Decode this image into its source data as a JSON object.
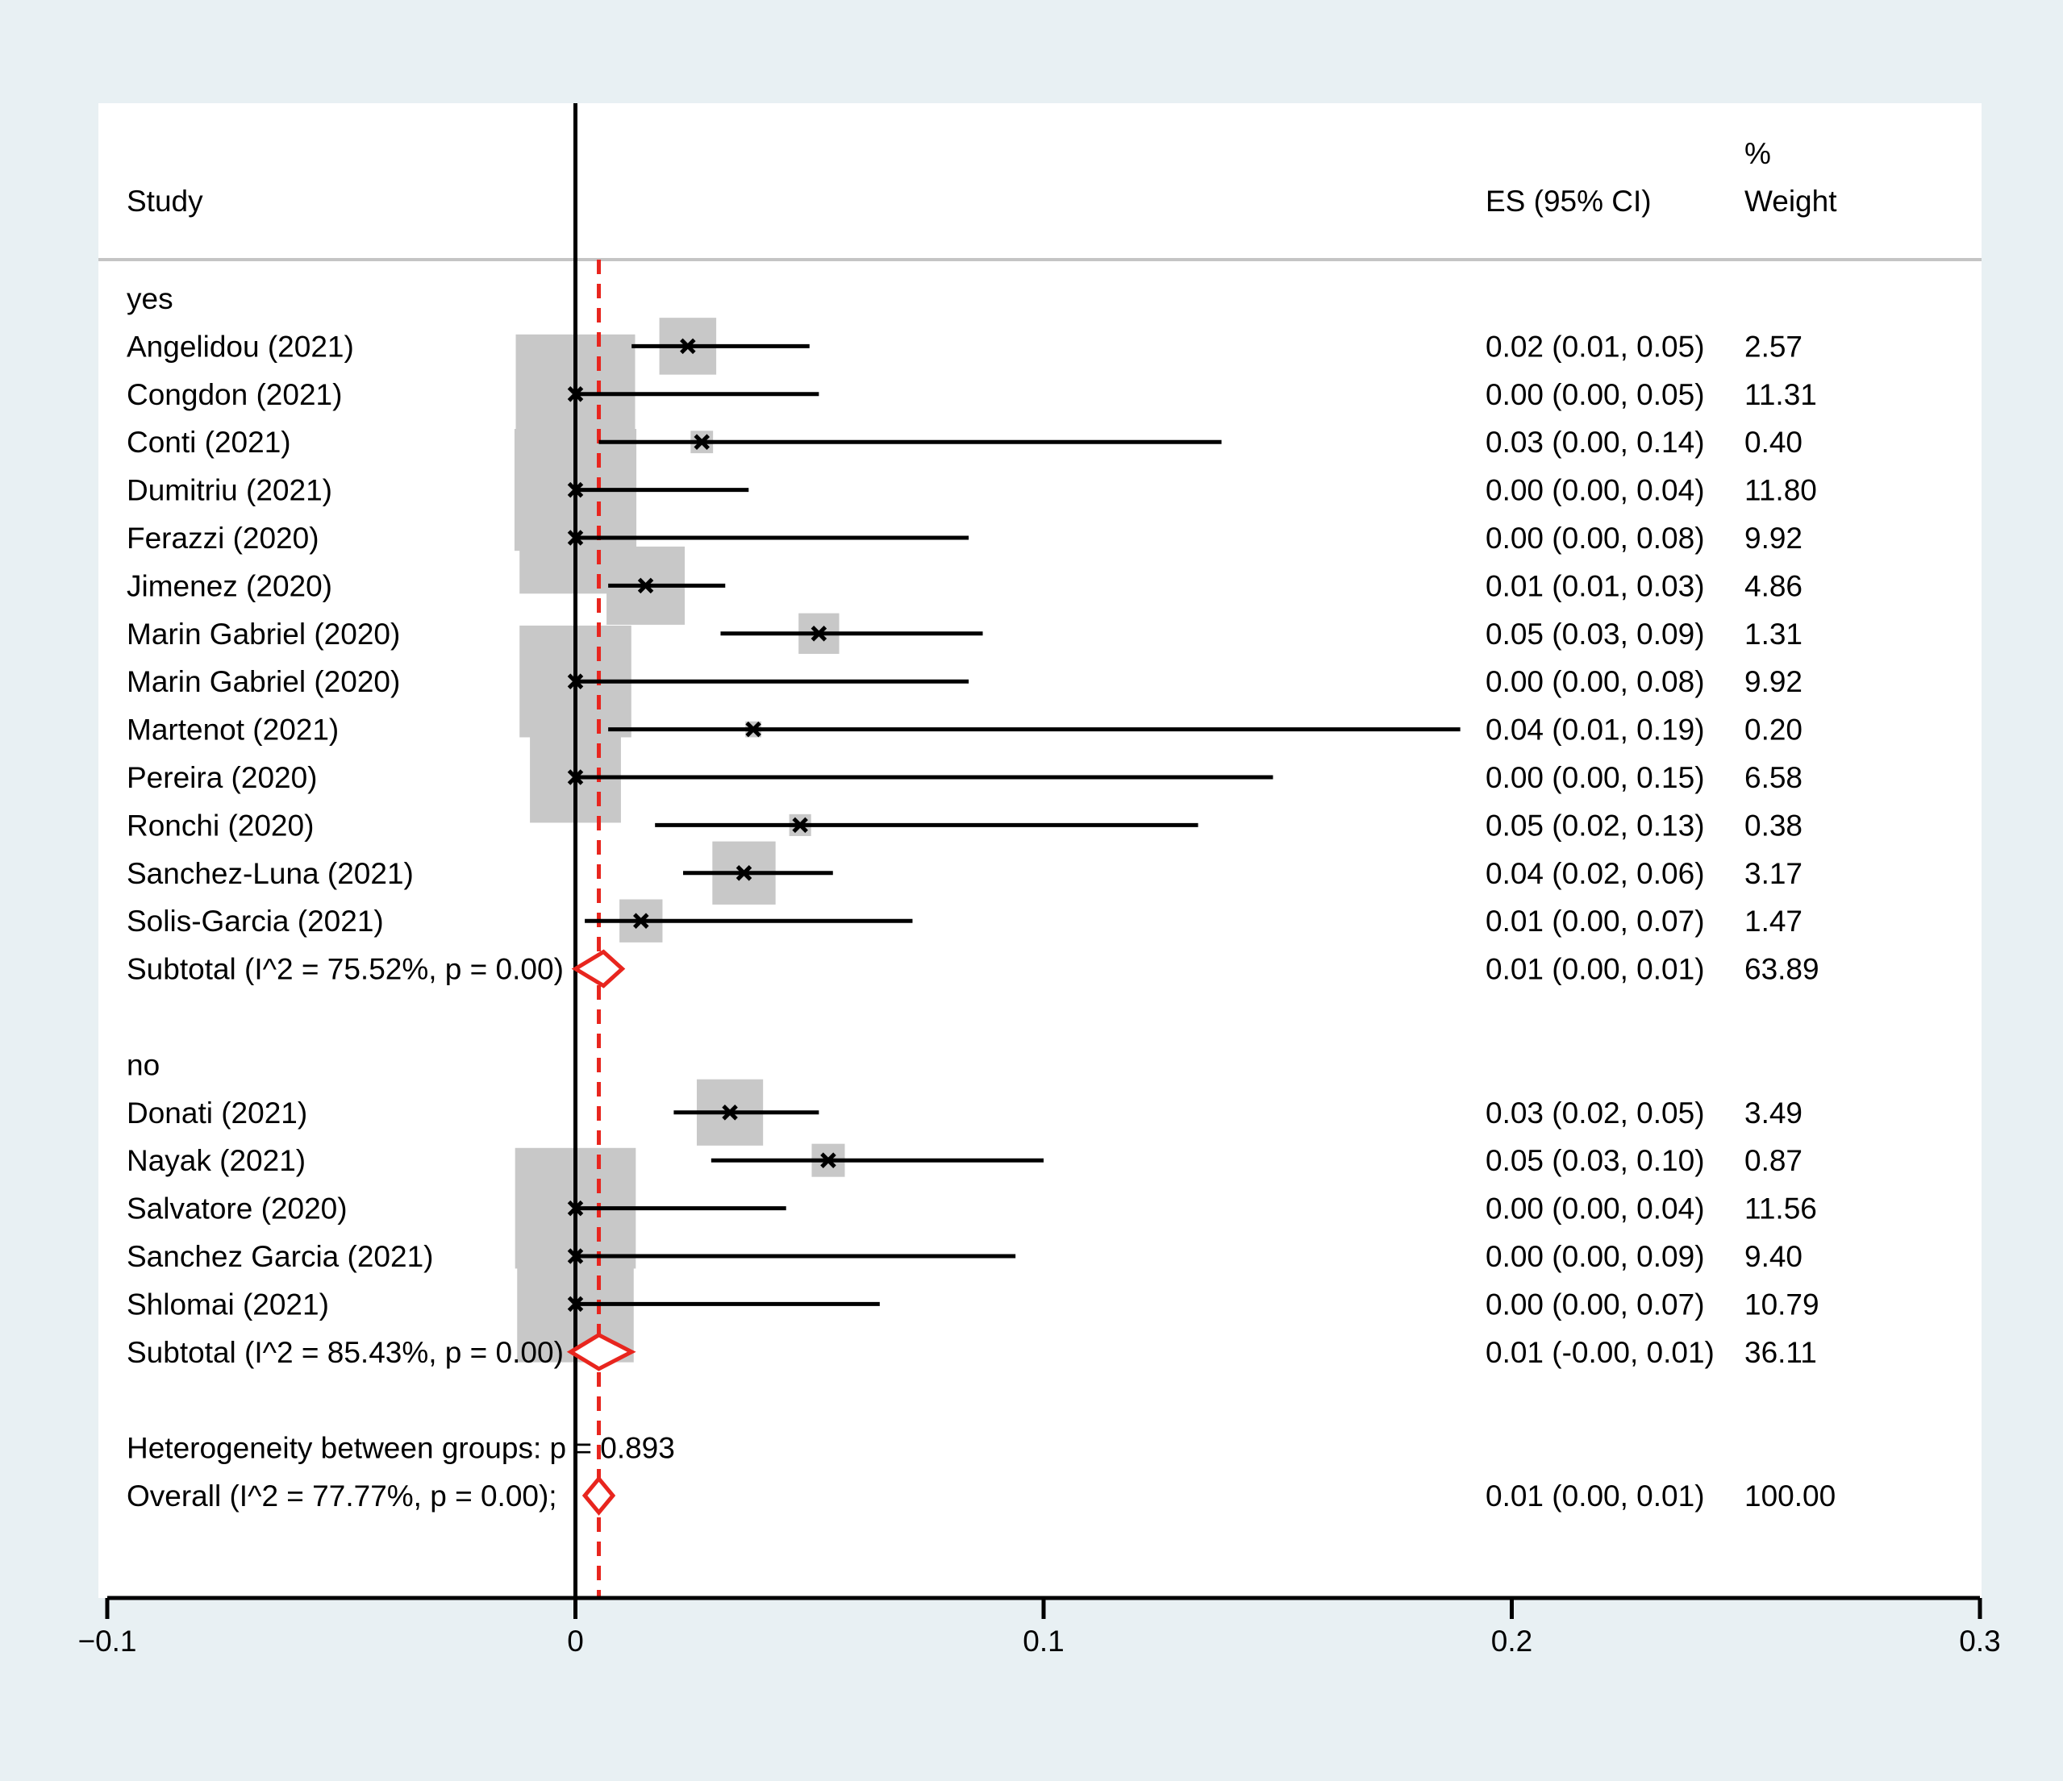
{
  "chart_data": {
    "type": "forest",
    "title": "",
    "xlabel": "",
    "xlim": [
      -0.1,
      0.3
    ],
    "xticks": [
      -0.1,
      0,
      0.1,
      0.2,
      0.3
    ],
    "xtick_labels": [
      "−0.1",
      "0",
      "0.1",
      "0.2",
      "0.3"
    ],
    "overall_es": 0.005,
    "headers": {
      "study": "Study",
      "es": "ES (95% CI)",
      "weight_line1": "%",
      "weight_line2": "Weight"
    },
    "groups": [
      {
        "label": "yes",
        "studies": [
          {
            "name": "Angelidou  (2021)",
            "es": 0.024,
            "lo": 0.012,
            "hi": 0.05,
            "es_text": "0.02 (0.01, 0.05)",
            "weight": 2.57,
            "weight_text": "2.57"
          },
          {
            "name": "Congdon (2021)",
            "es": 0.0,
            "lo": 0.0,
            "hi": 0.052,
            "es_text": "0.00 (0.00, 0.05)",
            "weight": 11.31,
            "weight_text": "11.31"
          },
          {
            "name": "Conti  (2021)",
            "es": 0.027,
            "lo": 0.005,
            "hi": 0.138,
            "es_text": "0.03 (0.00, 0.14)",
            "weight": 0.4,
            "weight_text": "0.40"
          },
          {
            "name": "Dumitriu  (2021)",
            "es": 0.0,
            "lo": 0.0,
            "hi": 0.037,
            "es_text": "0.00 (0.00, 0.04)",
            "weight": 11.8,
            "weight_text": "11.80"
          },
          {
            "name": "Ferazzi  (2020)",
            "es": 0.0,
            "lo": 0.0,
            "hi": 0.084,
            "es_text": "0.00 (0.00, 0.08)",
            "weight": 9.92,
            "weight_text": "9.92"
          },
          {
            "name": "Jimenez  (2020)",
            "es": 0.015,
            "lo": 0.007,
            "hi": 0.032,
            "es_text": "0.01 (0.01, 0.03)",
            "weight": 4.86,
            "weight_text": "4.86"
          },
          {
            "name": "Marin Gabriel  (2020)",
            "es": 0.052,
            "lo": 0.031,
            "hi": 0.087,
            "es_text": "0.05 (0.03, 0.09)",
            "weight": 1.31,
            "weight_text": "1.31"
          },
          {
            "name": "Marin Gabriel  (2020)",
            "es": 0.0,
            "lo": 0.0,
            "hi": 0.084,
            "es_text": "0.00 (0.00, 0.08)",
            "weight": 9.92,
            "weight_text": "9.92"
          },
          {
            "name": "Martenot  (2021)",
            "es": 0.038,
            "lo": 0.007,
            "hi": 0.189,
            "es_text": "0.04 (0.01, 0.19)",
            "weight": 0.2,
            "weight_text": "0.20"
          },
          {
            "name": "Pereira  (2020)",
            "es": 0.0,
            "lo": 0.0,
            "hi": 0.149,
            "es_text": "0.00 (0.00, 0.15)",
            "weight": 6.58,
            "weight_text": "6.58"
          },
          {
            "name": "Ronchi  (2020)",
            "es": 0.048,
            "lo": 0.017,
            "hi": 0.133,
            "es_text": "0.05 (0.02, 0.13)",
            "weight": 0.38,
            "weight_text": "0.38"
          },
          {
            "name": "Sanchez-Luna (2021)",
            "es": 0.036,
            "lo": 0.023,
            "hi": 0.055,
            "es_text": "0.04 (0.02, 0.06)",
            "weight": 3.17,
            "weight_text": "3.17"
          },
          {
            "name": "Solis-Garcia  (2021)",
            "es": 0.014,
            "lo": 0.002,
            "hi": 0.072,
            "es_text": "0.01 (0.00, 0.07)",
            "weight": 1.47,
            "weight_text": "1.47"
          }
        ],
        "subtotal": {
          "label": "Subtotal  (I^2 = 75.52%, p = 0.00)",
          "es": 0.006,
          "lo": 0.0,
          "hi": 0.01,
          "es_text": "0.01 (0.00, 0.01)",
          "weight_text": "63.89"
        }
      },
      {
        "label": "no",
        "studies": [
          {
            "name": "Donati  (2021)",
            "es": 0.033,
            "lo": 0.021,
            "hi": 0.052,
            "es_text": "0.03 (0.02, 0.05)",
            "weight": 3.49,
            "weight_text": "3.49"
          },
          {
            "name": "Nayak  (2021)",
            "es": 0.054,
            "lo": 0.029,
            "hi": 0.1,
            "es_text": "0.05 (0.03, 0.10)",
            "weight": 0.87,
            "weight_text": "0.87"
          },
          {
            "name": "Salvatore  (2020)",
            "es": 0.0,
            "lo": 0.0,
            "hi": 0.045,
            "es_text": "0.00 (0.00, 0.04)",
            "weight": 11.56,
            "weight_text": "11.56"
          },
          {
            "name": "Sanchez Garcia  (2021)",
            "es": 0.0,
            "lo": 0.0,
            "hi": 0.094,
            "es_text": "0.00 (0.00, 0.09)",
            "weight": 9.4,
            "weight_text": "9.40"
          },
          {
            "name": "Shlomai  (2021)",
            "es": 0.0,
            "lo": 0.0,
            "hi": 0.065,
            "es_text": "0.00 (0.00, 0.07)",
            "weight": 10.79,
            "weight_text": "10.79"
          }
        ],
        "subtotal": {
          "label": "Subtotal  (I^2 = 85.43%, p = 0.00)",
          "es": 0.005,
          "lo": -0.001,
          "hi": 0.012,
          "es_text": "0.01 (-0.00, 0.01)",
          "weight_text": "36.11"
        }
      }
    ],
    "heterogeneity_text": "Heterogeneity between groups: p = 0.893",
    "overall": {
      "label": "Overall  (I^2 = 77.77%, p = 0.00);",
      "es": 0.005,
      "lo": 0.002,
      "hi": 0.008,
      "es_text": "0.01 (0.00, 0.01)",
      "weight_text": "100.00"
    }
  },
  "colors": {
    "outer_background": "#e8f0f3",
    "plot_background": "#ffffff",
    "weight_box": "#c8c8c8",
    "ci_line": "#000000",
    "point_marker": "#000000",
    "pooled_diamond": "#e8251e",
    "overall_line": "#e8251e",
    "null_line": "#000000",
    "header_rule": "#c4c4c4"
  }
}
